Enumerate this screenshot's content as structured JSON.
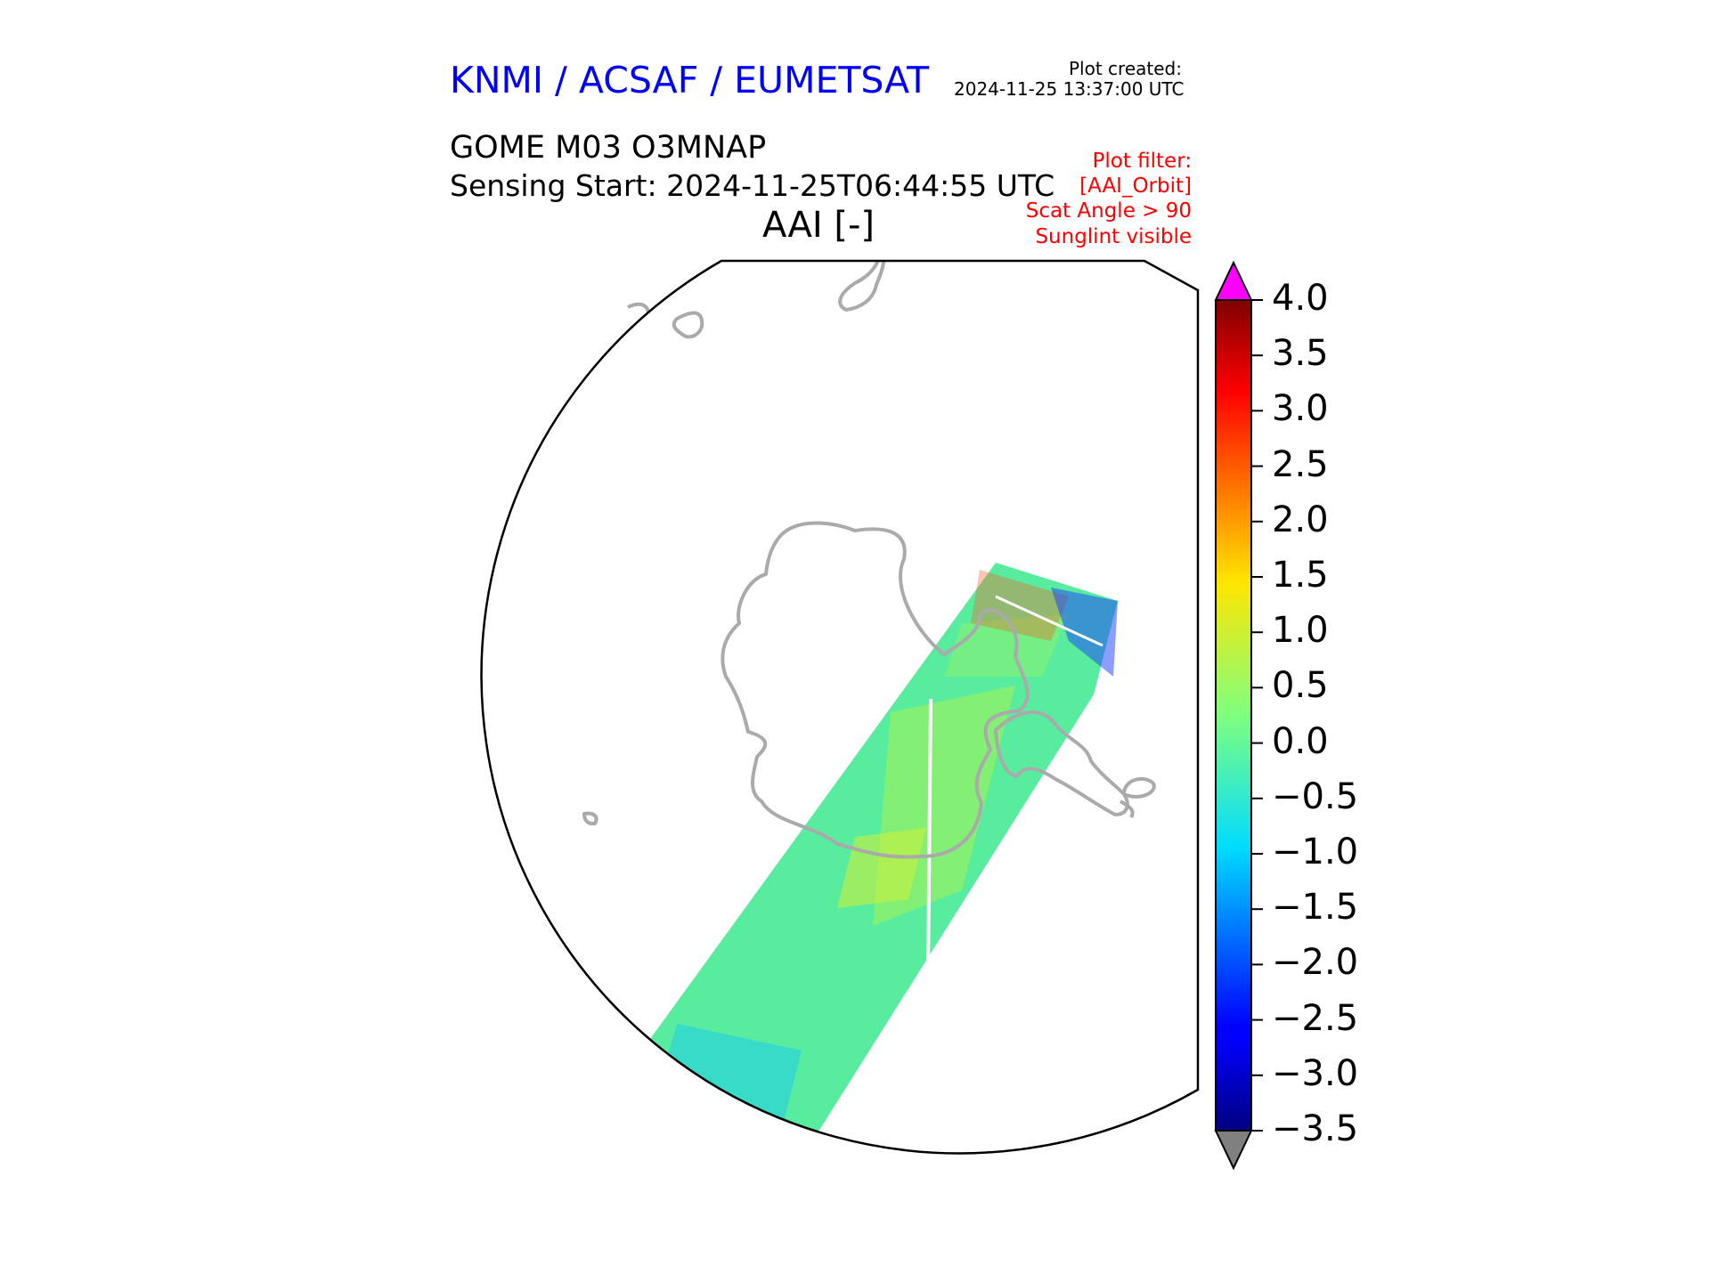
{
  "header": {
    "org": "KNMI / ACSAF / EUMETSAT",
    "created_label": "Plot created:",
    "created_value": "2024-11-25 13:37:00 UTC",
    "product": "GOME M03 O3MNAP",
    "sensing": "Sensing Start: 2024-11-25T06:44:55 UTC",
    "parameter": "AAI [-]"
  },
  "filter": {
    "l1": "Plot filter:",
    "l2": "[AAI_Orbit]",
    "l3": "Scat Angle > 90",
    "l4": "Sunglint visible"
  },
  "colorbar": {
    "ticks": [
      "4.0",
      "3.5",
      "3.0",
      "2.5",
      "2.0",
      "1.5",
      "1.0",
      "0.5",
      "0.0",
      "−0.5",
      "−1.0",
      "−1.5",
      "−2.0",
      "−2.5",
      "−3.0",
      "−3.5"
    ],
    "tick_values": [
      4.0,
      3.5,
      3.0,
      2.5,
      2.0,
      1.5,
      1.0,
      0.5,
      0.0,
      -0.5,
      -1.0,
      -1.5,
      -2.0,
      -2.5,
      -3.0,
      -3.5
    ],
    "range": [
      -3.5,
      4.0
    ],
    "colormap": "jet",
    "over_color": "#ff00ff",
    "under_color": "#808080"
  },
  "map": {
    "projection": "south polar stereographic",
    "coastline_color": "#aaaaaa",
    "swath_dominant_value_range": [
      -1.0,
      1.0
    ]
  }
}
